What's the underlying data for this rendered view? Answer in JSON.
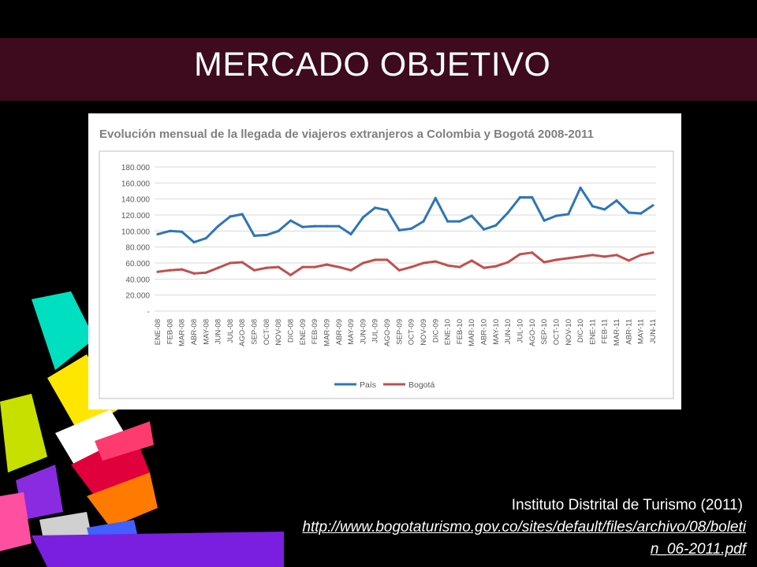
{
  "slide": {
    "title": "MERCADO OBJETIVO",
    "source": "Instituto Distrital de Turismo (2011)",
    "url": "http://www.bogotaturismo.gov.co/sites/default/files/archivo/08/boletin_06-2011.pdf"
  },
  "chart_data": {
    "type": "line",
    "title": "Evolución mensual de la llegada de viajeros extranjeros a Colombia y Bogotá 2008-2011",
    "xlabel": "",
    "ylabel": "",
    "ylim": [
      0,
      180000
    ],
    "yticks": [
      "-",
      "20.000",
      "40.000",
      "60.000",
      "80.000",
      "100.000",
      "120.000",
      "140.000",
      "160.000",
      "180.000"
    ],
    "grid": true,
    "legend": "bottom",
    "categories": [
      "ENE-08",
      "FEB-08",
      "MAR-08",
      "ABR-08",
      "MAY-08",
      "JUN-08",
      "JUL-08",
      "AGO-08",
      "SEP-08",
      "OCT-08",
      "NOV-08",
      "DIC-08",
      "ENE-09",
      "FEB-09",
      "MAR-09",
      "ABR-09",
      "MAY-09",
      "JUN-09",
      "JUL-09",
      "AGO-09",
      "SEP-09",
      "OCT-09",
      "NOV-09",
      "DIC-09",
      "ENE-10",
      "FEB-10",
      "MAR-10",
      "ABR-10",
      "MAY-10",
      "JUN-10",
      "JUL-10",
      "AGO-10",
      "SEP-10",
      "OCT-10",
      "NOV-10",
      "DIC-10",
      "ENE-11",
      "FEB-11",
      "MAR-11",
      "ABR-11",
      "MAY-11",
      "JUN-11"
    ],
    "series": [
      {
        "name": "País",
        "color": "#2e75b6",
        "values": [
          96000,
          100000,
          99000,
          86000,
          91000,
          106000,
          118000,
          121000,
          94000,
          95000,
          100000,
          113000,
          105000,
          106000,
          106000,
          106000,
          96000,
          117000,
          129000,
          126000,
          101000,
          103000,
          112000,
          141000,
          112000,
          112000,
          119000,
          102000,
          107000,
          123000,
          142000,
          142000,
          113000,
          119000,
          121000,
          154000,
          131000,
          127000,
          138000,
          123000,
          122000,
          132000
        ]
      },
      {
        "name": "Bogotá",
        "color": "#c0504d",
        "values": [
          49000,
          51000,
          52000,
          47000,
          48000,
          54000,
          60000,
          61000,
          51000,
          54000,
          55000,
          45000,
          55000,
          55000,
          58000,
          55000,
          51000,
          60000,
          64000,
          64000,
          51000,
          55000,
          60000,
          62000,
          57000,
          55000,
          63000,
          54000,
          56000,
          61000,
          71000,
          73000,
          61000,
          64000,
          66000,
          68000,
          70000,
          68000,
          70000,
          63000,
          70000,
          73000
        ]
      }
    ]
  },
  "colors": {
    "title_bar": "#3d0a1e",
    "background": "#000000",
    "text": "#ffffff"
  }
}
